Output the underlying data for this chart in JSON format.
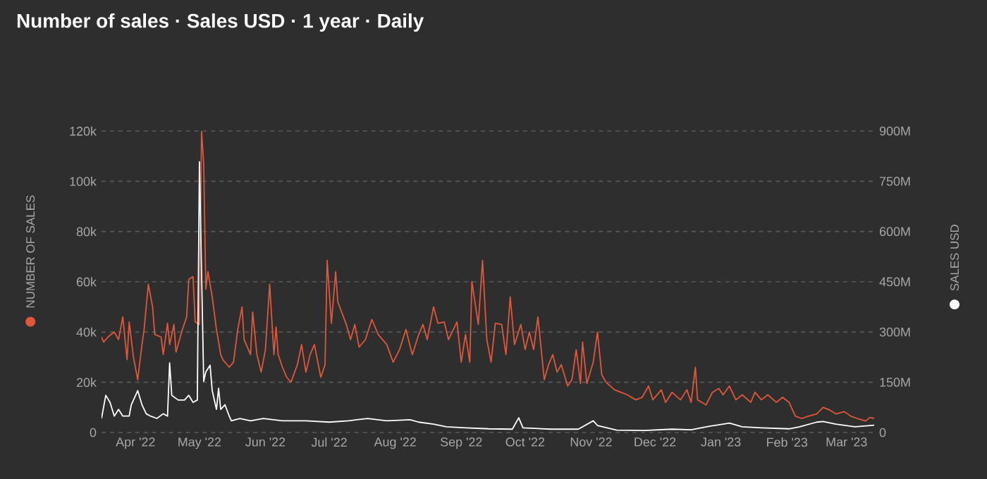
{
  "chart_data": {
    "type": "line",
    "title": "Number of sales · Sales USD · 1 year · Daily",
    "ylabel": "NUMBER OF SALES",
    "y2label": "SALES USD",
    "grid": "y",
    "xlim": [
      "2022-03-16",
      "2023-03-14"
    ],
    "xticks": [
      {
        "value": "2022-04-01",
        "label": "Apr '22"
      },
      {
        "value": "2022-05-01",
        "label": "May '22"
      },
      {
        "value": "2022-06-01",
        "label": "Jun '22"
      },
      {
        "value": "2022-07-01",
        "label": "Jul '22"
      },
      {
        "value": "2022-08-01",
        "label": "Aug '22"
      },
      {
        "value": "2022-09-01",
        "label": "Sep '22"
      },
      {
        "value": "2022-10-01",
        "label": "Oct '22"
      },
      {
        "value": "2022-11-01",
        "label": "Nov '22"
      },
      {
        "value": "2022-12-01",
        "label": "Dec '22"
      },
      {
        "value": "2023-01-01",
        "label": "Jan '23"
      },
      {
        "value": "2023-02-01",
        "label": "Feb '23"
      },
      {
        "value": "2023-03-01",
        "label": "Mar '23"
      }
    ],
    "ylim": [
      0,
      120000
    ],
    "yticks": [
      0,
      {
        "value": 20000,
        "label": "20k"
      },
      {
        "value": 40000,
        "label": "40k"
      },
      {
        "value": 60000,
        "label": "60k"
      },
      {
        "value": 80000,
        "label": "80k"
      },
      {
        "value": 100000,
        "label": "100k"
      },
      {
        "value": 120000,
        "label": "120k"
      }
    ],
    "y2lim": [
      0,
      900000000
    ],
    "y2ticks": [
      0,
      {
        "value": 150000000,
        "label": "150M"
      },
      {
        "value": 300000000,
        "label": "300M"
      },
      {
        "value": 450000000,
        "label": "450M"
      },
      {
        "value": 600000000,
        "label": "600M"
      },
      {
        "value": 750000000,
        "label": "750M"
      },
      {
        "value": 900000000,
        "label": "900M"
      }
    ],
    "series": [
      {
        "color": "#e0573b",
        "x": [
          "2022-03-16",
          "2022-03-17",
          "2022-03-19",
          "2022-03-22",
          "2022-03-24",
          "2022-03-26",
          "2022-03-28",
          "2022-03-29",
          "2022-03-31",
          "2022-04-02",
          "2022-04-04",
          "2022-04-05",
          "2022-04-07",
          "2022-04-09",
          "2022-04-10",
          "2022-04-13",
          "2022-04-14",
          "2022-04-16",
          "2022-04-17",
          "2022-04-19",
          "2022-04-20",
          "2022-04-23",
          "2022-04-25",
          "2022-04-26",
          "2022-04-28",
          "2022-04-29",
          "2022-05-01",
          "2022-05-02",
          "2022-05-03",
          "2022-05-04",
          "2022-05-05",
          "2022-05-07",
          "2022-05-09",
          "2022-05-11",
          "2022-05-12",
          "2022-05-15",
          "2022-05-17",
          "2022-05-19",
          "2022-05-21",
          "2022-05-22",
          "2022-05-25",
          "2022-05-26",
          "2022-05-28",
          "2022-05-30",
          "2022-06-01",
          "2022-06-03",
          "2022-06-05",
          "2022-06-06",
          "2022-06-07",
          "2022-06-09",
          "2022-06-11",
          "2022-06-13",
          "2022-06-16",
          "2022-06-18",
          "2022-06-20",
          "2022-06-22",
          "2022-06-24",
          "2022-06-27",
          "2022-06-29",
          "2022-06-30",
          "2022-07-02",
          "2022-07-04",
          "2022-07-05",
          "2022-07-09",
          "2022-07-11",
          "2022-07-13",
          "2022-07-15",
          "2022-07-18",
          "2022-07-21",
          "2022-07-24",
          "2022-07-28",
          "2022-07-31",
          "2022-08-03",
          "2022-08-06",
          "2022-08-09",
          "2022-08-12",
          "2022-08-14",
          "2022-08-16",
          "2022-08-19",
          "2022-08-21",
          "2022-08-24",
          "2022-08-26",
          "2022-08-30",
          "2022-09-01",
          "2022-09-03",
          "2022-09-05",
          "2022-09-06",
          "2022-09-09",
          "2022-09-11",
          "2022-09-13",
          "2022-09-15",
          "2022-09-17",
          "2022-09-20",
          "2022-09-22",
          "2022-09-24",
          "2022-09-26",
          "2022-09-29",
          "2022-10-01",
          "2022-10-03",
          "2022-10-05",
          "2022-10-07",
          "2022-10-10",
          "2022-10-12",
          "2022-10-14",
          "2022-10-16",
          "2022-10-18",
          "2022-10-21",
          "2022-10-23",
          "2022-10-25",
          "2022-10-27",
          "2022-10-28",
          "2022-10-30",
          "2022-11-02",
          "2022-11-04",
          "2022-11-06",
          "2022-11-08",
          "2022-11-12",
          "2022-11-15",
          "2022-11-18",
          "2022-11-22",
          "2022-11-25",
          "2022-11-28",
          "2022-11-30",
          "2022-12-04",
          "2022-12-06",
          "2022-12-09",
          "2022-12-13",
          "2022-12-16",
          "2022-12-18",
          "2022-12-20",
          "2022-12-21",
          "2022-12-25",
          "2022-12-28",
          "2022-12-31",
          "2023-01-02",
          "2023-01-05",
          "2023-01-08",
          "2023-01-11",
          "2023-01-15",
          "2023-01-17",
          "2023-01-20",
          "2023-01-23",
          "2023-01-27",
          "2023-01-30",
          "2023-02-02",
          "2023-02-05",
          "2023-02-08",
          "2023-02-11",
          "2023-02-15",
          "2023-02-18",
          "2023-02-21",
          "2023-02-24",
          "2023-02-28",
          "2023-03-03",
          "2023-03-06",
          "2023-03-10",
          "2023-03-12",
          "2023-03-14"
        ],
        "values": [
          38000,
          36000,
          38000,
          40000,
          37000,
          46000,
          29000,
          44000,
          30000,
          21000,
          35000,
          41000,
          59000,
          50000,
          39000,
          38000,
          31000,
          43500,
          35000,
          43000,
          32000,
          41000,
          46000,
          61000,
          62000,
          44000,
          43000,
          120000,
          107000,
          57000,
          64000,
          54000,
          41000,
          31000,
          29000,
          26000,
          28000,
          41000,
          50000,
          37000,
          31000,
          48000,
          31000,
          24000,
          33000,
          59000,
          31000,
          42000,
          31000,
          26000,
          22000,
          20000,
          27000,
          35000,
          24000,
          31000,
          35000,
          22000,
          27000,
          68500,
          43500,
          64000,
          52000,
          43000,
          37000,
          43000,
          34000,
          37000,
          45000,
          39000,
          35000,
          28000,
          33000,
          41000,
          31000,
          39000,
          43000,
          37000,
          50000,
          43500,
          44000,
          37000,
          44000,
          28000,
          39000,
          28000,
          60000,
          43000,
          68500,
          37000,
          28000,
          43500,
          43000,
          31000,
          54000,
          35000,
          43000,
          33000,
          40000,
          33000,
          46000,
          21000,
          27000,
          31000,
          24000,
          27000,
          18500,
          21000,
          33000,
          19500,
          36000,
          19500,
          28000,
          40000,
          23000,
          20000,
          17000,
          16000,
          15000,
          13000,
          14000,
          18500,
          13000,
          17000,
          12000,
          16000,
          13000,
          17000,
          12000,
          26000,
          13000,
          11000,
          16000,
          17500,
          15000,
          18500,
          13000,
          15000,
          12000,
          16000,
          13000,
          15000,
          12000,
          14000,
          12000,
          6500,
          5600,
          6500,
          7400,
          10000,
          9000,
          7400,
          8300,
          6500,
          5600,
          4600,
          6000,
          5600
        ]
      },
      {
        "color": "#ffffff",
        "axis": "y2",
        "x": [
          "2022-03-16",
          "2022-03-18",
          "2022-03-20",
          "2022-03-22",
          "2022-03-24",
          "2022-03-26",
          "2022-03-29",
          "2022-03-30",
          "2022-04-02",
          "2022-04-04",
          "2022-04-06",
          "2022-04-08",
          "2022-04-11",
          "2022-04-14",
          "2022-04-16",
          "2022-04-17",
          "2022-04-18",
          "2022-04-21",
          "2022-04-24",
          "2022-04-26",
          "2022-04-28",
          "2022-04-30",
          "2022-05-01",
          "2022-05-03",
          "2022-05-04",
          "2022-05-06",
          "2022-05-07",
          "2022-05-09",
          "2022-05-10",
          "2022-05-11",
          "2022-05-13",
          "2022-05-15",
          "2022-05-16",
          "2022-05-20",
          "2022-05-25",
          "2022-05-31",
          "2022-06-09",
          "2022-06-20",
          "2022-07-01",
          "2022-07-10",
          "2022-07-19",
          "2022-07-28",
          "2022-08-08",
          "2022-08-12",
          "2022-08-19",
          "2022-08-25",
          "2022-09-03",
          "2022-09-14",
          "2022-09-25",
          "2022-09-28",
          "2022-09-30",
          "2022-10-13",
          "2022-10-26",
          "2022-11-02",
          "2022-11-04",
          "2022-11-13",
          "2022-11-26",
          "2022-12-09",
          "2022-12-18",
          "2022-12-27",
          "2023-01-05",
          "2023-01-11",
          "2023-01-20",
          "2023-02-02",
          "2023-02-07",
          "2023-02-15",
          "2023-02-18",
          "2023-02-24",
          "2023-03-05",
          "2023-03-14"
        ],
        "values": [
          42000000,
          111000000,
          90000000,
          49000000,
          69000000,
          49000000,
          49000000,
          83000000,
          125000000,
          83000000,
          56000000,
          49000000,
          42000000,
          56000000,
          49000000,
          208000000,
          111000000,
          97000000,
          97000000,
          111000000,
          90000000,
          97000000,
          808000000,
          153000000,
          181000000,
          201000000,
          125000000,
          69000000,
          132000000,
          69000000,
          83000000,
          49000000,
          35000000,
          42000000,
          35000000,
          42000000,
          35000000,
          35000000,
          31000000,
          35000000,
          42000000,
          35000000,
          38000000,
          31000000,
          25000000,
          17000000,
          14000000,
          11000000,
          10000000,
          44000000,
          14000000,
          10000000,
          10000000,
          35000000,
          21000000,
          7000000,
          6000000,
          10000000,
          8000000,
          19000000,
          28000000,
          17000000,
          14000000,
          11000000,
          17000000,
          31000000,
          33000000,
          25000000,
          17000000,
          22000000
        ]
      }
    ]
  }
}
